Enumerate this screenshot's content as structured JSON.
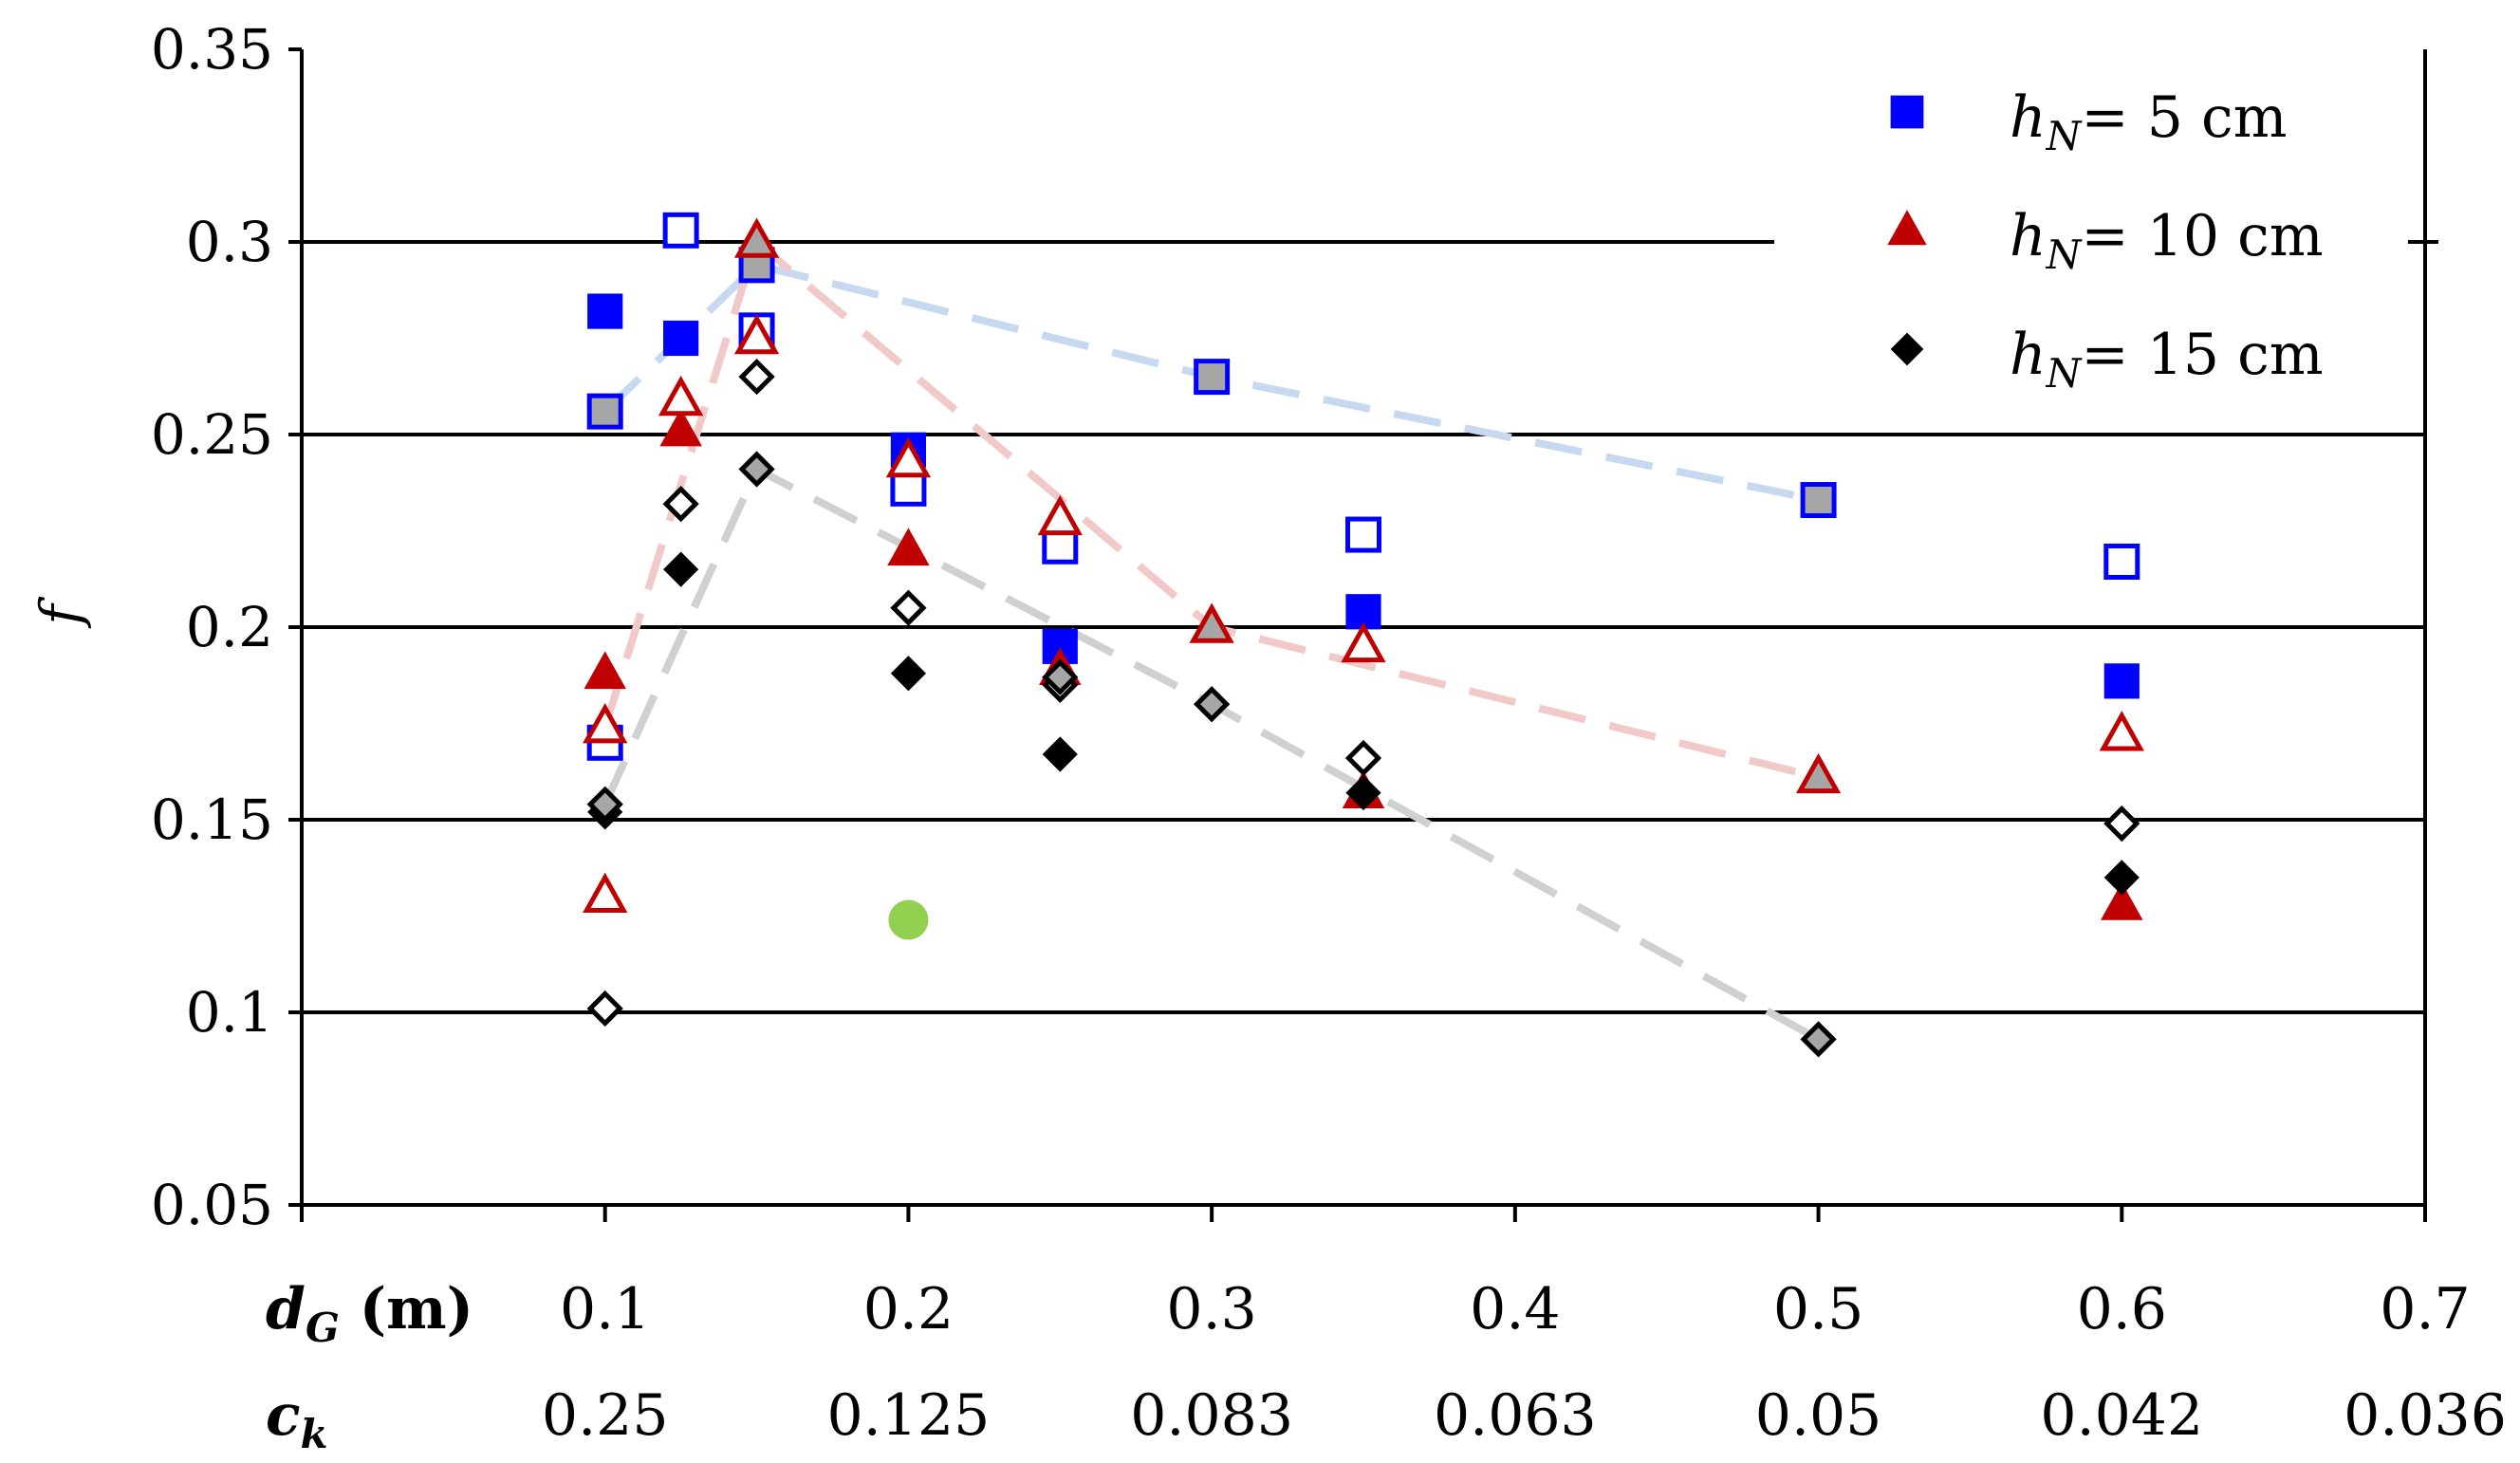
{
  "chart_data": {
    "type": "scatter",
    "title": "",
    "ylabel": "f",
    "ylim": [
      0.05,
      0.35
    ],
    "xlim": [
      0,
      0.7
    ],
    "y_ticks": [
      "0.05",
      "0.1",
      "0.15",
      "0.2",
      "0.25",
      "0.3",
      "0.35"
    ],
    "x_ticks": [
      "0.1",
      "0.2",
      "0.3",
      "0.4",
      "0.5",
      "0.6",
      "0.7"
    ],
    "x_tick_values": [
      0.1,
      0.2,
      0.3,
      0.4,
      0.5,
      0.6,
      0.7
    ],
    "x_label_main": "d",
    "x_label_main_sub": "G",
    "x_label_main_unit": " (m)",
    "x_label_second": "c",
    "x_label_second_sub": "k",
    "x_ticks_secondary": [
      "0.25",
      "0.125",
      "0.083",
      "0.063",
      "0.05",
      "0.042",
      "0.036"
    ],
    "gridlines_y": [
      0.1,
      0.15,
      0.2,
      0.25,
      0.3
    ],
    "legend": {
      "position": "top-right",
      "entries": [
        {
          "var": "h",
          "sub": "N",
          "text": "= 5 cm",
          "marker": "square",
          "color": "#0000ff"
        },
        {
          "var": "h",
          "sub": "N",
          "text": "= 10 cm",
          "marker": "triangle",
          "color": "#c00000"
        },
        {
          "var": "h",
          "sub": "N",
          "text": "= 15 cm",
          "marker": "diamond",
          "color": "#000000"
        }
      ]
    },
    "series": [
      {
        "name": "hN = 5 cm filled",
        "marker": "square",
        "style": "filled",
        "color": "#0000ff",
        "x": [
          0.1,
          0.125,
          0.2,
          0.25,
          0.35,
          0.6
        ],
        "y": [
          0.282,
          0.275,
          0.246,
          0.195,
          0.204,
          0.186
        ]
      },
      {
        "name": "hN = 5 cm open",
        "marker": "square",
        "style": "open",
        "color": "#0000ff",
        "x": [
          0.1,
          0.125,
          0.15,
          0.2,
          0.25,
          0.35,
          0.6
        ],
        "y": [
          0.17,
          0.303,
          0.277,
          0.236,
          0.221,
          0.224,
          0.217
        ]
      },
      {
        "name": "hN = 5 cm gray",
        "marker": "square",
        "style": "gray",
        "color": "#0000ff",
        "x": [
          0.1,
          0.15,
          0.3,
          0.5
        ],
        "y": [
          0.256,
          0.294,
          0.265,
          0.233
        ]
      },
      {
        "name": "hN = 10 cm filled",
        "marker": "triangle",
        "style": "filled",
        "color": "#c00000",
        "x": [
          0.1,
          0.125,
          0.2,
          0.25,
          0.35,
          0.6
        ],
        "y": [
          0.188,
          0.251,
          0.22,
          0.189,
          0.157,
          0.128
        ]
      },
      {
        "name": "hN = 10 cm open",
        "marker": "triangle",
        "style": "open",
        "color": "#c00000",
        "x": [
          0.1,
          0.1,
          0.125,
          0.15,
          0.2,
          0.25,
          0.35,
          0.6
        ],
        "y": [
          0.174,
          0.13,
          0.259,
          0.275,
          0.243,
          0.228,
          0.195,
          0.172
        ]
      },
      {
        "name": "hN = 10 cm gray",
        "marker": "triangle",
        "style": "gray",
        "color": "#c00000",
        "x": [
          0.15,
          0.3,
          0.5
        ],
        "y": [
          0.3,
          0.2,
          0.161
        ]
      },
      {
        "name": "hN = 15 cm filled",
        "marker": "diamond",
        "style": "filled",
        "color": "#000000",
        "x": [
          0.1,
          0.125,
          0.2,
          0.25,
          0.35,
          0.6
        ],
        "y": [
          0.152,
          0.215,
          0.188,
          0.167,
          0.157,
          0.135
        ]
      },
      {
        "name": "hN = 15 cm open",
        "marker": "diamond",
        "style": "open",
        "color": "#000000",
        "x": [
          0.1,
          0.125,
          0.15,
          0.2,
          0.25,
          0.35,
          0.6
        ],
        "y": [
          0.101,
          0.232,
          0.265,
          0.205,
          0.185,
          0.166,
          0.149
        ]
      },
      {
        "name": "hN = 15 cm gray",
        "marker": "diamond",
        "style": "gray",
        "color": "#000000",
        "x": [
          0.1,
          0.15,
          0.25,
          0.3,
          0.5
        ],
        "y": [
          0.154,
          0.241,
          0.187,
          0.18,
          0.093
        ]
      },
      {
        "name": "single point",
        "marker": "circle",
        "style": "filled",
        "color": "#92d050",
        "x": [
          0.2
        ],
        "y": [
          0.124
        ]
      }
    ],
    "trend_lines": [
      {
        "name": "hN = 5 cm trend",
        "color": "#c6d9f1",
        "x": [
          0.1,
          0.15,
          0.3,
          0.5
        ],
        "y": [
          0.256,
          0.294,
          0.265,
          0.233
        ]
      },
      {
        "name": "hN = 10 cm trend",
        "color": "#f2c9c9",
        "x": [
          0.1,
          0.15,
          0.3,
          0.5
        ],
        "y": [
          0.174,
          0.3,
          0.2,
          0.161
        ]
      },
      {
        "name": "hN = 15 cm trend",
        "color": "#d0d0d0",
        "x": [
          0.1,
          0.15,
          0.3,
          0.5
        ],
        "y": [
          0.154,
          0.241,
          0.18,
          0.093
        ]
      }
    ]
  }
}
